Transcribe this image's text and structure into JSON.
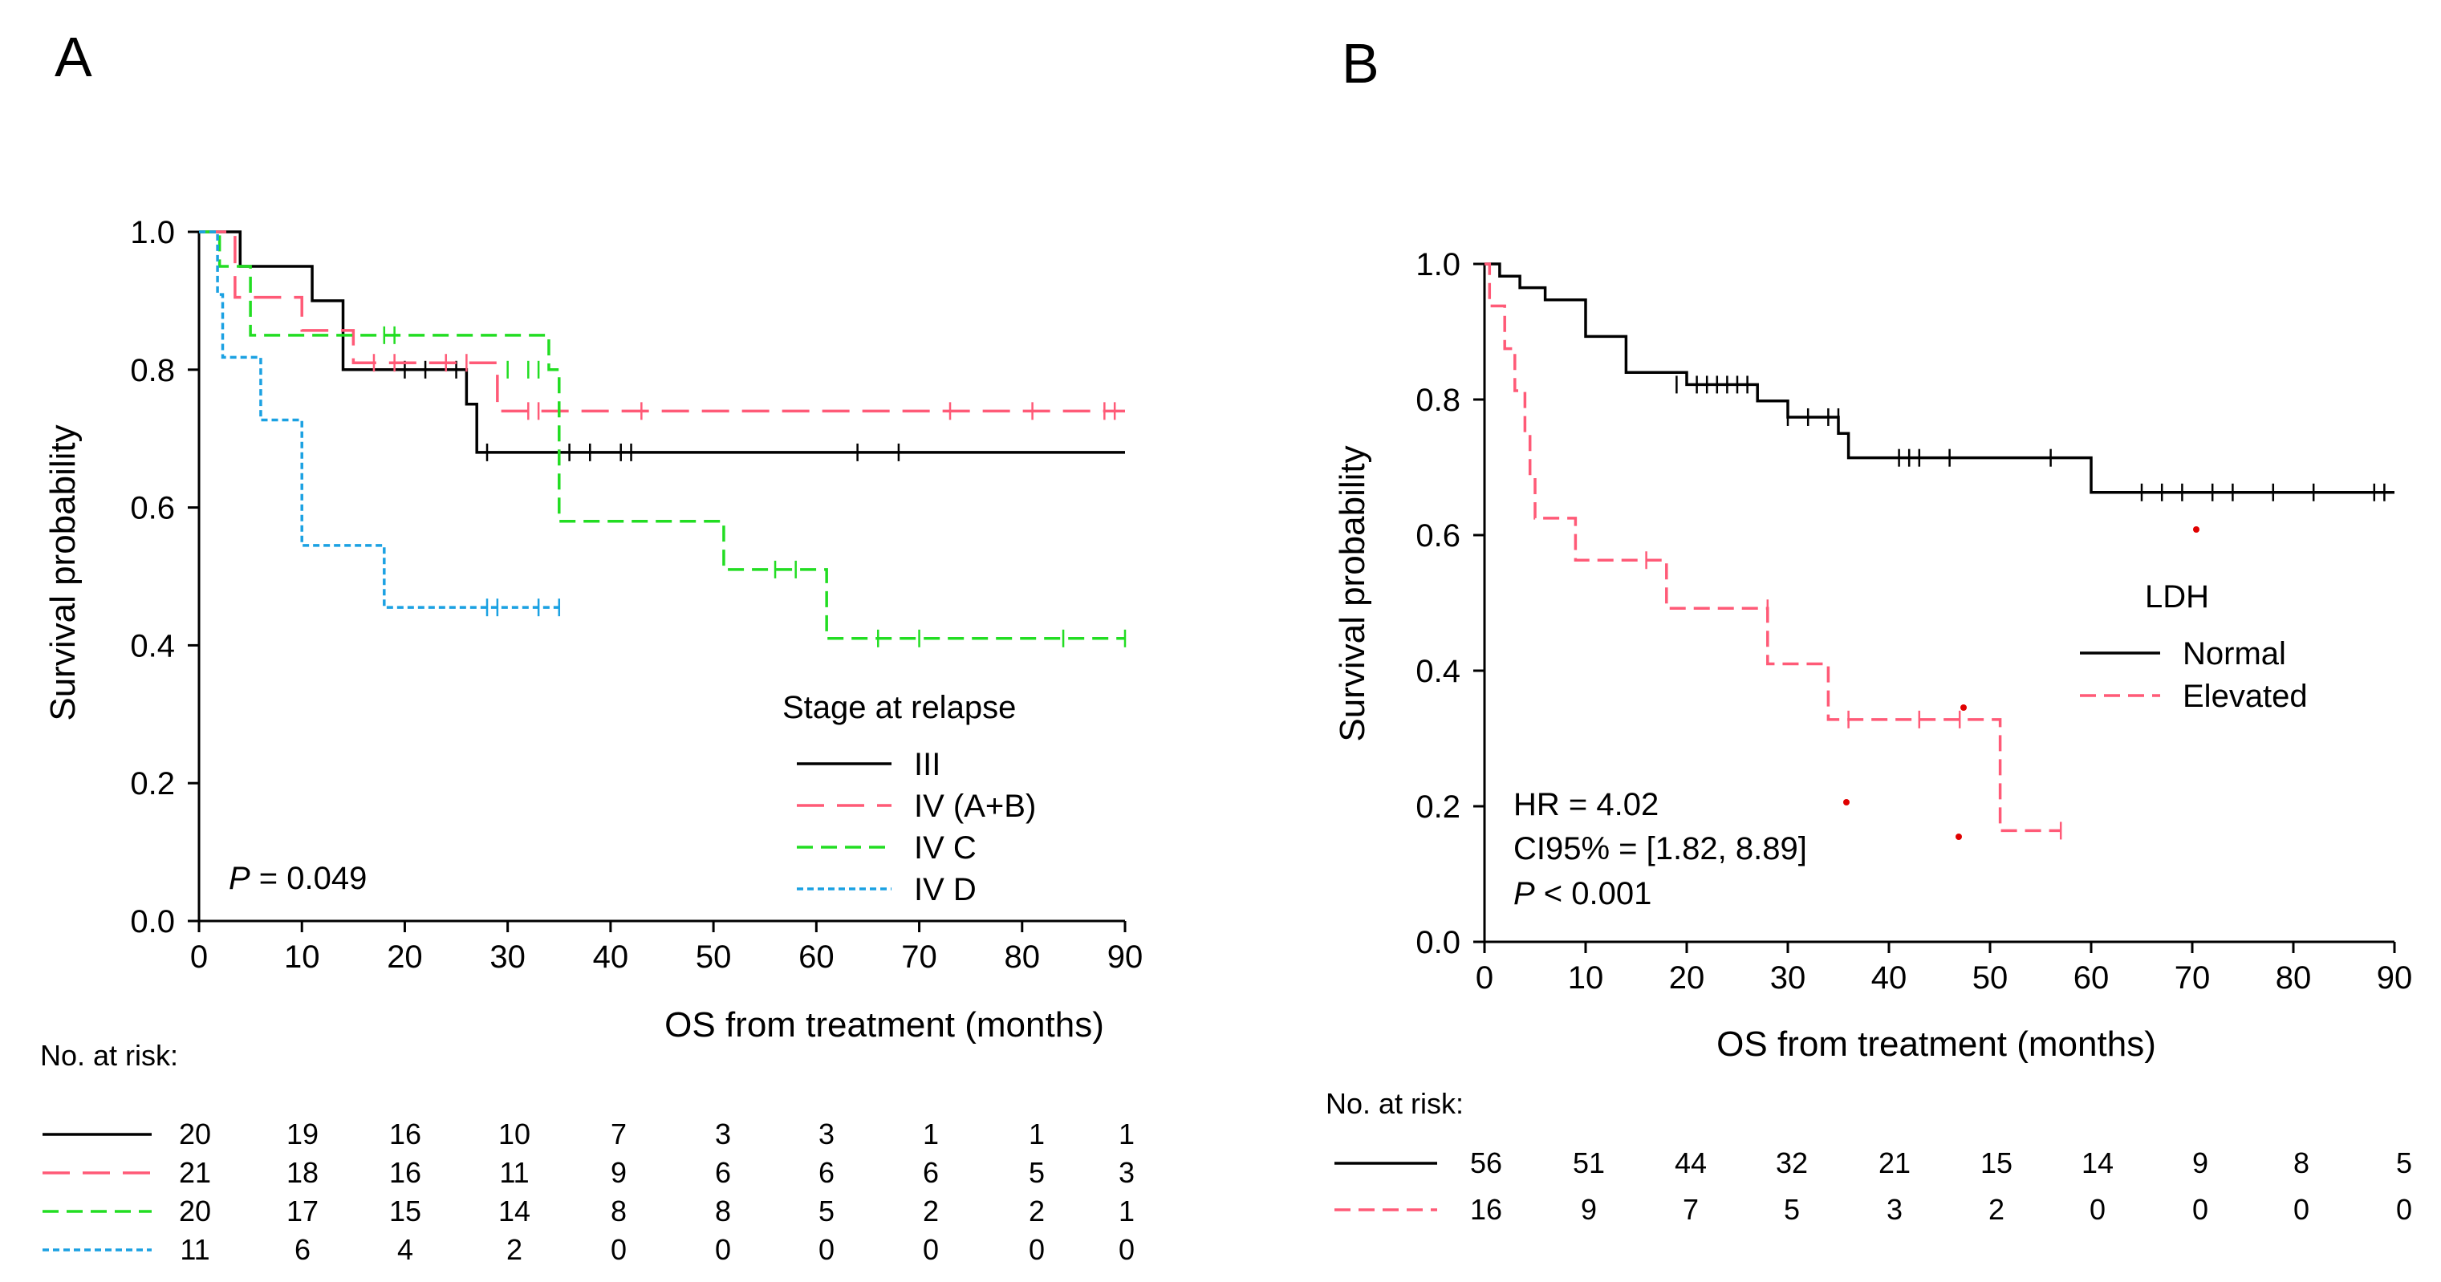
{
  "chart_data": [
    {
      "type": "line",
      "subtype": "kaplan-meier",
      "panel_label": "A",
      "title": "",
      "xlabel": "OS from treatment (months)",
      "ylabel": "Survival probability",
      "xlim": [
        0,
        90
      ],
      "ylim": [
        0,
        1
      ],
      "x_ticks": [
        0,
        10,
        20,
        30,
        40,
        50,
        60,
        70,
        80,
        90
      ],
      "y_ticks": [
        0.0,
        0.2,
        0.4,
        0.6,
        0.8,
        1.0
      ],
      "y_tick_labels": [
        "0.0",
        "0.2",
        "0.4",
        "0.6",
        "0.8",
        "1.0"
      ],
      "legend_title": "Stage at relapse",
      "legend_position": "bottom-right",
      "annotation": {
        "italic": "P",
        "rest": " = 0.049"
      },
      "series": [
        {
          "name": "III",
          "color": "#000000",
          "dash": "solid",
          "steps": [
            [
              0,
              1.0
            ],
            [
              4,
              0.95
            ],
            [
              11,
              0.9
            ],
            [
              14,
              0.8
            ],
            [
              26,
              0.75
            ],
            [
              27,
              0.68
            ]
          ],
          "end_x": 90,
          "censors": [
            [
              20,
              0.8
            ],
            [
              22,
              0.8
            ],
            [
              25,
              0.8
            ],
            [
              28,
              0.68
            ],
            [
              36,
              0.68
            ],
            [
              38,
              0.68
            ],
            [
              41,
              0.68
            ],
            [
              42,
              0.68
            ],
            [
              64,
              0.68
            ],
            [
              68,
              0.68
            ]
          ]
        },
        {
          "name": "IV (A+B)",
          "color": "#ff5a77",
          "dash": "long",
          "steps": [
            [
              0,
              1.0
            ],
            [
              3.5,
              0.905
            ],
            [
              10,
              0.857
            ],
            [
              15,
              0.81
            ],
            [
              29,
              0.74
            ]
          ],
          "end_x": 90,
          "censors": [
            [
              17,
              0.81
            ],
            [
              19,
              0.81
            ],
            [
              24,
              0.81
            ],
            [
              26,
              0.81
            ],
            [
              32,
              0.74
            ],
            [
              33,
              0.74
            ],
            [
              43,
              0.74
            ],
            [
              73,
              0.74
            ],
            [
              81,
              0.74
            ],
            [
              88,
              0.74
            ],
            [
              89,
              0.74
            ]
          ]
        },
        {
          "name": "IV C",
          "color": "#22dd22",
          "dash": "medium",
          "steps": [
            [
              0,
              1.0
            ],
            [
              2,
              0.95
            ],
            [
              5,
              0.85
            ],
            [
              34,
              0.8
            ],
            [
              35,
              0.58
            ],
            [
              51,
              0.51
            ],
            [
              61,
              0.41
            ]
          ],
          "end_x": 90,
          "censors": [
            [
              18,
              0.85
            ],
            [
              19,
              0.85
            ],
            [
              30,
              0.8
            ],
            [
              32,
              0.8
            ],
            [
              33,
              0.8
            ],
            [
              56,
              0.51
            ],
            [
              58,
              0.51
            ],
            [
              66,
              0.41
            ],
            [
              70,
              0.41
            ],
            [
              84,
              0.41
            ],
            [
              90,
              0.41
            ]
          ]
        },
        {
          "name": "IV D",
          "color": "#1ba1e2",
          "dash": "dotted",
          "steps": [
            [
              0,
              1.0
            ],
            [
              1.8,
              0.909
            ],
            [
              2.3,
              0.818
            ],
            [
              6,
              0.727
            ],
            [
              10,
              0.545
            ],
            [
              18,
              0.455
            ]
          ],
          "end_x": 35,
          "censors": [
            [
              28,
              0.455
            ],
            [
              29,
              0.455
            ],
            [
              33,
              0.455
            ],
            [
              35,
              0.455
            ]
          ]
        }
      ],
      "risk_table": {
        "label": "No. at risk:",
        "rows": [
          {
            "series": "III",
            "values": [
              "20",
              "19",
              "16",
              "10",
              "7",
              "3",
              "3",
              "1",
              "1",
              "1"
            ]
          },
          {
            "series": "IV (A+B)",
            "values": [
              "21",
              "18",
              "16",
              "11",
              "9",
              "6",
              "6",
              "6",
              "5",
              "3"
            ]
          },
          {
            "series": "IV C",
            "values": [
              "20",
              "17",
              "15",
              "14",
              "8",
              "8",
              "5",
              "2",
              "2",
              "1"
            ]
          },
          {
            "series": "IV D",
            "values": [
              "11",
              "6",
              "4",
              "2",
              "0",
              "0",
              "0",
              "0",
              "0",
              "0"
            ]
          }
        ]
      }
    },
    {
      "type": "line",
      "subtype": "kaplan-meier",
      "panel_label": "B",
      "title": "",
      "xlabel": "OS from treatment (months)",
      "ylabel": "Survival probability",
      "xlim": [
        0,
        90
      ],
      "ylim": [
        0,
        1
      ],
      "x_ticks": [
        0,
        10,
        20,
        30,
        40,
        50,
        60,
        70,
        80,
        90
      ],
      "y_ticks": [
        0.0,
        0.2,
        0.4,
        0.6,
        0.8,
        1.0
      ],
      "y_tick_labels": [
        "0.0",
        "0.2",
        "0.4",
        "0.6",
        "0.8",
        "1.0"
      ],
      "legend_title": "LDH",
      "legend_position": "right",
      "annotations": [
        {
          "italic": "",
          "rest": "HR = 4.02"
        },
        {
          "italic": "",
          "rest": "CI95% = [1.82, 8.89]"
        },
        {
          "italic": "P",
          "rest": " < 0.001"
        }
      ],
      "series": [
        {
          "name": "Normal",
          "color": "#000000",
          "dash": "solid",
          "steps": [
            [
              0,
              1.0
            ],
            [
              1.5,
              0.982
            ],
            [
              3.5,
              0.965
            ],
            [
              6,
              0.947
            ],
            [
              10,
              0.893
            ],
            [
              14,
              0.84
            ],
            [
              20,
              0.822
            ],
            [
              27,
              0.798
            ],
            [
              30,
              0.774
            ],
            [
              35,
              0.75
            ],
            [
              36,
              0.714
            ],
            [
              60,
              0.663
            ]
          ],
          "end_x": 90,
          "censors": [
            [
              19,
              0.822
            ],
            [
              21,
              0.822
            ],
            [
              22,
              0.822
            ],
            [
              23,
              0.822
            ],
            [
              24,
              0.822
            ],
            [
              25,
              0.822
            ],
            [
              26,
              0.822
            ],
            [
              30,
              0.774
            ],
            [
              32,
              0.774
            ],
            [
              34,
              0.774
            ],
            [
              35,
              0.774
            ],
            [
              41,
              0.714
            ],
            [
              42,
              0.714
            ],
            [
              43,
              0.714
            ],
            [
              46,
              0.714
            ],
            [
              56,
              0.714
            ],
            [
              65,
              0.663
            ],
            [
              67,
              0.663
            ],
            [
              69,
              0.663
            ],
            [
              72,
              0.663
            ],
            [
              74,
              0.663
            ],
            [
              78,
              0.663
            ],
            [
              82,
              0.663
            ],
            [
              88,
              0.663
            ],
            [
              89,
              0.663
            ]
          ]
        },
        {
          "name": "Elevated",
          "color": "#ff5a77",
          "dash": "medium",
          "steps": [
            [
              0,
              1.0
            ],
            [
              0.5,
              0.938
            ],
            [
              2,
              0.875
            ],
            [
              3,
              0.813
            ],
            [
              4,
              0.75
            ],
            [
              4.5,
              0.688
            ],
            [
              5,
              0.625
            ],
            [
              9,
              0.563
            ],
            [
              18,
              0.492
            ],
            [
              28,
              0.41
            ],
            [
              34,
              0.328
            ],
            [
              51,
              0.164
            ]
          ],
          "end_x": 57,
          "censors": [
            [
              16,
              0.563
            ],
            [
              28,
              0.492
            ],
            [
              36,
              0.328
            ],
            [
              43,
              0.328
            ],
            [
              47,
              0.328
            ],
            [
              57,
              0.164
            ]
          ]
        }
      ],
      "risk_table": {
        "label": "No. at risk:",
        "rows": [
          {
            "series": "Normal",
            "values": [
              "56",
              "51",
              "44",
              "32",
              "21",
              "15",
              "14",
              "9",
              "8",
              "5"
            ]
          },
          {
            "series": "Elevated",
            "values": [
              "16",
              "9",
              "7",
              "5",
              "3",
              "2",
              "0",
              "0",
              "0",
              "0"
            ]
          }
        ]
      }
    }
  ]
}
